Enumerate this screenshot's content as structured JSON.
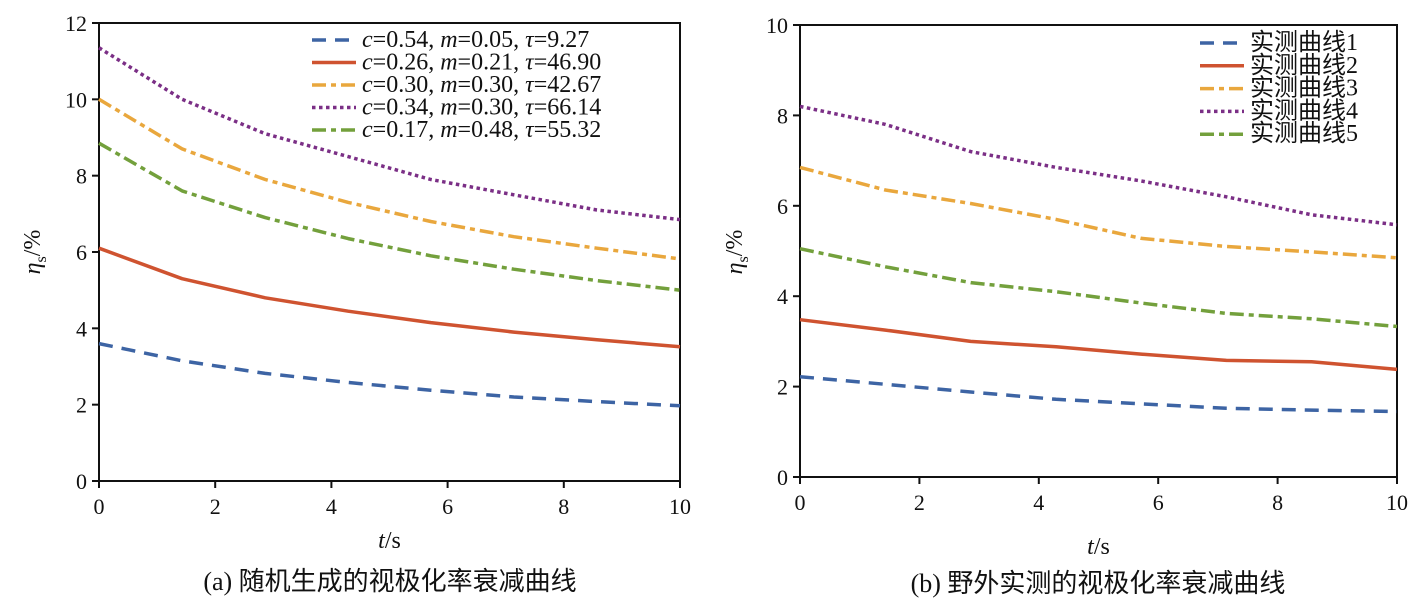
{
  "chart_data": [
    {
      "type": "line",
      "panel": "a",
      "caption": "(a) 随机生成的视极化率衰减曲线",
      "xlabel_var": "t",
      "xlabel_unit": "/s",
      "ylabel_var": "η",
      "ylabel_sub": "s",
      "ylabel_unit": "/%",
      "xlim": [
        0,
        10
      ],
      "ylim": [
        0,
        12
      ],
      "xticks": [
        "0",
        "2",
        "4",
        "6",
        "8",
        "10"
      ],
      "yticks": [
        "0",
        "2",
        "4",
        "6",
        "8",
        "10",
        "12"
      ],
      "legend_position": "top-right",
      "x": [
        0,
        1.43,
        2.86,
        4.29,
        5.71,
        7.14,
        8.57,
        10
      ],
      "series": [
        {
          "name": "c=0.54, m=0.05, τ=9.27",
          "c": "0.54",
          "m": "0.05",
          "tau": "9.27",
          "color": "#3d64a4",
          "dash": "dashed",
          "values": [
            3.6,
            3.15,
            2.82,
            2.58,
            2.38,
            2.2,
            2.08,
            1.97
          ]
        },
        {
          "name": "c=0.26, m=0.21, τ=46.90",
          "c": "0.26",
          "m": "0.21",
          "tau": "46.90",
          "color": "#cf5330",
          "dash": "solid",
          "values": [
            6.1,
            5.3,
            4.8,
            4.45,
            4.15,
            3.9,
            3.7,
            3.52
          ]
        },
        {
          "name": "c=0.30, m=0.30, τ=42.67",
          "c": "0.30",
          "m": "0.30",
          "tau": "42.67",
          "color": "#e9a73d",
          "dash": "dashdot",
          "values": [
            10.0,
            8.7,
            7.9,
            7.3,
            6.8,
            6.4,
            6.1,
            5.82
          ]
        },
        {
          "name": "c=0.34, m=0.30, τ=66.14",
          "c": "0.34",
          "m": "0.30",
          "tau": "66.14",
          "color": "#7b2f86",
          "dash": "dotted",
          "values": [
            11.35,
            10.0,
            9.1,
            8.5,
            7.9,
            7.5,
            7.1,
            6.85
          ]
        },
        {
          "name": "c=0.17, m=0.48, τ=55.32",
          "c": "0.17",
          "m": "0.48",
          "tau": "55.32",
          "color": "#73a03c",
          "dash": "dashdot",
          "values": [
            8.85,
            7.6,
            6.9,
            6.35,
            5.9,
            5.55,
            5.25,
            5.0
          ]
        }
      ]
    },
    {
      "type": "line",
      "panel": "b",
      "caption": "(b) 野外实测的视极化率衰减曲线",
      "xlabel_var": "t",
      "xlabel_unit": "/s",
      "ylabel_var": "η",
      "ylabel_sub": "s",
      "ylabel_unit": "/%",
      "xlim": [
        0,
        10
      ],
      "ylim": [
        0,
        10
      ],
      "xticks": [
        "0",
        "2",
        "4",
        "6",
        "8",
        "10"
      ],
      "yticks": [
        "0",
        "2",
        "4",
        "6",
        "8",
        "10"
      ],
      "legend_position": "top-right",
      "x": [
        0,
        1.43,
        2.86,
        4.29,
        5.71,
        7.14,
        8.57,
        10
      ],
      "series": [
        {
          "name": "实测曲线1",
          "color": "#3d64a4",
          "dash": "dashed",
          "values": [
            2.22,
            2.05,
            1.88,
            1.72,
            1.62,
            1.52,
            1.48,
            1.45
          ]
        },
        {
          "name": "实测曲线2",
          "color": "#cf5330",
          "dash": "solid",
          "values": [
            3.48,
            3.25,
            3.0,
            2.88,
            2.72,
            2.58,
            2.55,
            2.38
          ]
        },
        {
          "name": "实测曲线3",
          "color": "#e9a73d",
          "dash": "dashdot",
          "values": [
            6.85,
            6.35,
            6.05,
            5.7,
            5.28,
            5.1,
            4.98,
            4.85
          ]
        },
        {
          "name": "实测曲线4",
          "color": "#7b2f86",
          "dash": "dotted",
          "values": [
            8.2,
            7.8,
            7.2,
            6.85,
            6.55,
            6.2,
            5.8,
            5.58
          ]
        },
        {
          "name": "实测曲线5",
          "color": "#73a03c",
          "dash": "dashdot",
          "values": [
            5.05,
            4.65,
            4.3,
            4.1,
            3.85,
            3.62,
            3.5,
            3.33
          ]
        }
      ]
    }
  ]
}
